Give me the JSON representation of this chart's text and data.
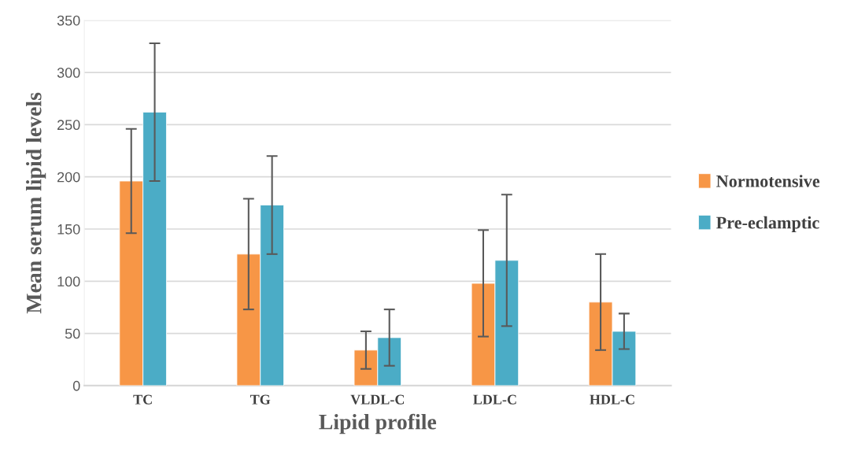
{
  "chart_data": {
    "type": "bar",
    "xlabel": "Lipid profile",
    "ylabel": "Mean serum lipid levels",
    "categories": [
      "TC",
      "TG",
      "VLDL-C",
      "LDL-C",
      "HDL-C"
    ],
    "series": [
      {
        "name": "Normotensive",
        "color": "#f79646",
        "values": [
          196,
          126,
          34,
          98,
          80
        ],
        "errors": [
          50,
          53,
          18,
          51,
          46
        ]
      },
      {
        "name": "Pre-eclamptic",
        "color": "#4bacc6",
        "values": [
          262,
          173,
          46,
          120,
          52
        ],
        "errors": [
          66,
          47,
          27,
          63,
          17
        ]
      }
    ],
    "ylim": [
      0,
      350
    ],
    "yticks": [
      0,
      50,
      100,
      150,
      200,
      250,
      300,
      350
    ],
    "grid": "y",
    "legend": "right"
  }
}
